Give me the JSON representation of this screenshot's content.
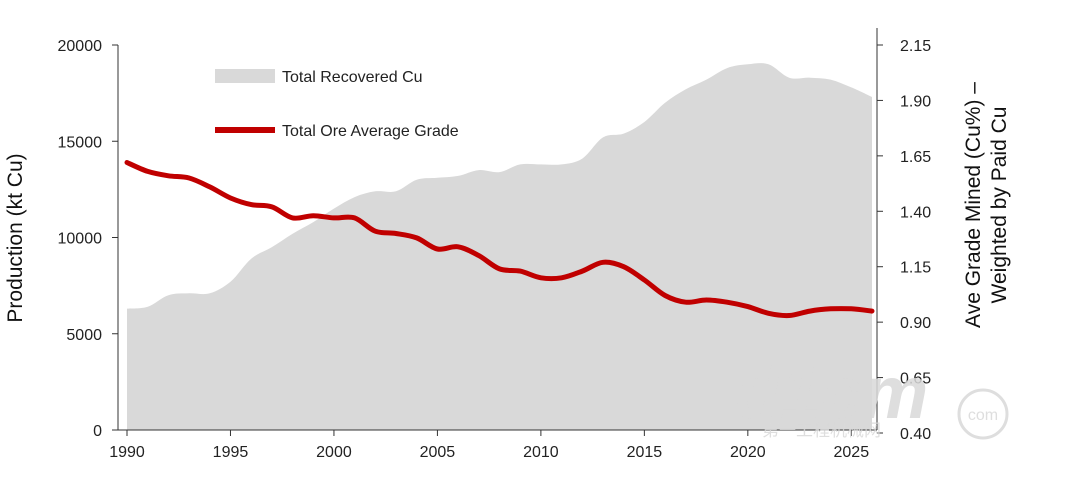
{
  "chart_data": {
    "type": "area",
    "title": "",
    "xlabel": "",
    "ylabel_left": "Production (kt Cu)",
    "ylabel_right_line1": "Ave Grade Mined (Cu%) –",
    "ylabel_right_line2": "Weighted by Paid Cu",
    "xlim": [
      1990,
      2026
    ],
    "ylim_left": [
      0,
      20000
    ],
    "ylim_right": [
      0.4,
      2.15
    ],
    "x_ticks": [
      "1990",
      "1995",
      "2000",
      "2005",
      "2010",
      "2015",
      "2020",
      "2025"
    ],
    "y_left_ticks": [
      "0",
      "5000",
      "10000",
      "15000",
      "20000"
    ],
    "y_right_ticks": [
      "0.40",
      "0.65",
      "0.90",
      "1.15",
      "1.40",
      "1.65",
      "1.90",
      "2.15"
    ],
    "grid": false,
    "legend_position": "top-left",
    "series": [
      {
        "name": "Total Recovered Cu",
        "type": "area",
        "axis": "left",
        "color": "#d9d9d9",
        "x": [
          1990,
          1991,
          1992,
          1993,
          1994,
          1995,
          1996,
          1997,
          1998,
          1999,
          2000,
          2001,
          2002,
          2003,
          2004,
          2005,
          2006,
          2007,
          2008,
          2009,
          2010,
          2011,
          2012,
          2013,
          2014,
          2015,
          2016,
          2017,
          2018,
          2019,
          2020,
          2021,
          2022,
          2023,
          2024,
          2025,
          2026
        ],
        "values": [
          6300,
          6400,
          7000,
          7100,
          7100,
          7700,
          8900,
          9500,
          10200,
          10800,
          11500,
          12100,
          12400,
          12400,
          13000,
          13100,
          13200,
          13500,
          13400,
          13800,
          13800,
          13800,
          14100,
          15200,
          15400,
          16000,
          17000,
          17700,
          18200,
          18800,
          19000,
          19000,
          18300,
          18300,
          18200,
          17800,
          17300
        ]
      },
      {
        "name": "Total Ore Average Grade",
        "type": "line",
        "axis": "right",
        "color": "#c00000",
        "x": [
          1990,
          1991,
          1992,
          1993,
          1994,
          1995,
          1996,
          1997,
          1998,
          1999,
          2000,
          2001,
          2002,
          2003,
          2004,
          2005,
          2006,
          2007,
          2008,
          2009,
          2010,
          2011,
          2012,
          2013,
          2014,
          2015,
          2016,
          2017,
          2018,
          2019,
          2020,
          2021,
          2022,
          2023,
          2024,
          2025,
          2026
        ],
        "values": [
          1.62,
          1.58,
          1.56,
          1.55,
          1.51,
          1.46,
          1.43,
          1.42,
          1.37,
          1.38,
          1.37,
          1.37,
          1.31,
          1.3,
          1.28,
          1.23,
          1.24,
          1.2,
          1.14,
          1.13,
          1.1,
          1.1,
          1.13,
          1.17,
          1.15,
          1.09,
          1.02,
          0.99,
          1.0,
          0.99,
          0.97,
          0.94,
          0.93,
          0.95,
          0.96,
          0.96,
          0.95
        ]
      }
    ]
  },
  "watermark": {
    "logo_text": "d1cm",
    "com_text": "com",
    "cn_text": "第一工程机械网"
  }
}
